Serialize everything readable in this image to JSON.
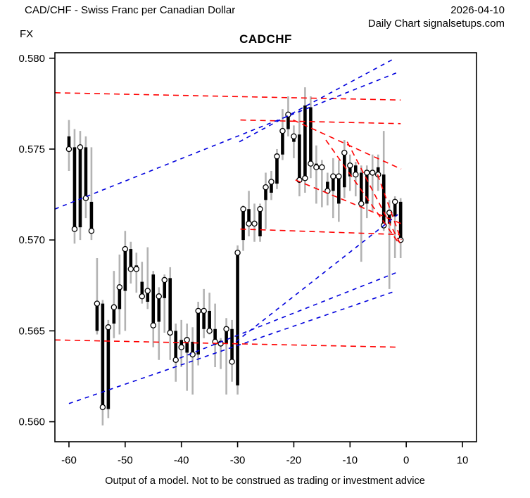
{
  "header": {
    "instrument_title": "CAD/CHF - Swiss Franc per Canadian Dollar",
    "date": "2026-04-10",
    "chart_type_line": "Daily Chart signalsetups.com",
    "market_label": "FX"
  },
  "footer": {
    "disclaimer": "Output of a model. Not to be construed as trading or investment advice"
  },
  "chart_data": {
    "type": "bar",
    "subtype": "ohlc-daily-bars",
    "title": "CADCHF",
    "xlabel": "",
    "ylabel": "",
    "xlim": [
      -62.5,
      12.5
    ],
    "ylim": [
      0.5589,
      0.5803
    ],
    "x_ticks": [
      -60,
      -50,
      -40,
      -30,
      -20,
      -10,
      0,
      10
    ],
    "y_ticks": [
      0.56,
      0.565,
      0.57,
      0.575,
      0.58
    ],
    "grid": false,
    "legend": "none",
    "colors": {
      "wick": "#b3b3b3",
      "body": "#000000",
      "close_marker_fill": "#ffffff",
      "close_marker_stroke": "#000000",
      "resistance_support": "#ff0000",
      "trend_blue": "#0000dd",
      "axis": "#000000",
      "background": "#ffffff"
    },
    "bars_format": [
      "t",
      "open",
      "high",
      "low",
      "close"
    ],
    "bars": [
      [
        -60,
        0.5757,
        0.5766,
        0.5738,
        0.575
      ],
      [
        -59,
        0.5751,
        0.5761,
        0.5698,
        0.5706
      ],
      [
        -58,
        0.5707,
        0.576,
        0.57,
        0.5751
      ],
      [
        -57,
        0.5751,
        0.5757,
        0.5712,
        0.5723
      ],
      [
        -56,
        0.5721,
        0.5751,
        0.57,
        0.5705
      ],
      [
        -55,
        0.565,
        0.569,
        0.5648,
        0.5665
      ],
      [
        -54,
        0.5665,
        0.5667,
        0.5598,
        0.5608
      ],
      [
        -53,
        0.5607,
        0.5656,
        0.5602,
        0.5652
      ],
      [
        -52,
        0.5654,
        0.5683,
        0.5646,
        0.5663
      ],
      [
        -51,
        0.5662,
        0.5692,
        0.5648,
        0.5674
      ],
      [
        -50,
        0.5672,
        0.5705,
        0.565,
        0.5695
      ],
      [
        -49,
        0.5695,
        0.5699,
        0.5676,
        0.5684
      ],
      [
        -48,
        0.5686,
        0.5693,
        0.5671,
        0.5684
      ],
      [
        -47,
        0.5677,
        0.5688,
        0.5665,
        0.5669
      ],
      [
        -46,
        0.5666,
        0.5696,
        0.5662,
        0.5672
      ],
      [
        -45,
        0.5681,
        0.5683,
        0.5641,
        0.5653
      ],
      [
        -44,
        0.5655,
        0.5674,
        0.5634,
        0.5669
      ],
      [
        -43,
        0.5668,
        0.5681,
        0.5649,
        0.5678
      ],
      [
        -42,
        0.5679,
        0.5685,
        0.5634,
        0.5649
      ],
      [
        -41,
        0.565,
        0.5654,
        0.5622,
        0.5634
      ],
      [
        -40,
        0.5645,
        0.5656,
        0.563,
        0.5641
      ],
      [
        -39,
        0.5638,
        0.5654,
        0.5617,
        0.5645
      ],
      [
        -38,
        0.5644,
        0.5652,
        0.5615,
        0.5637
      ],
      [
        -37,
        0.5637,
        0.5666,
        0.5631,
        0.5661
      ],
      [
        -36,
        0.5651,
        0.5673,
        0.5646,
        0.5661
      ],
      [
        -35,
        0.5661,
        0.5671,
        0.5648,
        0.565
      ],
      [
        -34,
        0.5651,
        0.5665,
        0.563,
        0.5644
      ],
      [
        -33,
        0.5643,
        0.5646,
        0.5629,
        0.5643
      ],
      [
        -32,
        0.5643,
        0.5657,
        0.5615,
        0.5651
      ],
      [
        -31,
        0.5651,
        0.5656,
        0.5622,
        0.5633
      ],
      [
        -30,
        0.562,
        0.5697,
        0.5615,
        0.5693
      ],
      [
        -29,
        0.57,
        0.5719,
        0.5694,
        0.5717
      ],
      [
        -28,
        0.5717,
        0.5727,
        0.5702,
        0.5709
      ],
      [
        -27,
        0.5709,
        0.572,
        0.5699,
        0.5709
      ],
      [
        -26,
        0.5702,
        0.572,
        0.5699,
        0.5717
      ],
      [
        -25,
        0.5722,
        0.5737,
        0.5706,
        0.5729
      ],
      [
        -24,
        0.5726,
        0.5738,
        0.5722,
        0.5732
      ],
      [
        -23,
        0.5731,
        0.575,
        0.5728,
        0.5746
      ],
      [
        -22,
        0.5747,
        0.5772,
        0.5744,
        0.576
      ],
      [
        -21,
        0.5761,
        0.5779,
        0.5757,
        0.5769
      ],
      [
        -20,
        0.5754,
        0.5763,
        0.5745,
        0.5757
      ],
      [
        -19,
        0.5758,
        0.5772,
        0.5724,
        0.5733
      ],
      [
        -18,
        0.5774,
        0.5784,
        0.5726,
        0.5734
      ],
      [
        -17,
        0.5773,
        0.5779,
        0.5734,
        0.5742
      ],
      [
        -16,
        0.5742,
        0.5752,
        0.572,
        0.574
      ],
      [
        -15,
        0.574,
        0.5744,
        0.5718,
        0.574
      ],
      [
        -14,
        0.5732,
        0.5737,
        0.5719,
        0.5727
      ],
      [
        -13,
        0.5727,
        0.5745,
        0.5712,
        0.5735
      ],
      [
        -12,
        0.572,
        0.5744,
        0.571,
        0.5735
      ],
      [
        -11,
        0.5729,
        0.5755,
        0.5723,
        0.5748
      ],
      [
        -10,
        0.5735,
        0.5747,
        0.5727,
        0.5741
      ],
      [
        -9,
        0.5741,
        0.5743,
        0.5724,
        0.5736
      ],
      [
        -8,
        0.5737,
        0.5741,
        0.5688,
        0.572
      ],
      [
        -7,
        0.572,
        0.5741,
        0.5712,
        0.5737
      ],
      [
        -6,
        0.5736,
        0.5747,
        0.5716,
        0.5737
      ],
      [
        -5,
        0.574,
        0.5747,
        0.5727,
        0.5736
      ],
      [
        -4,
        0.5736,
        0.576,
        0.5705,
        0.5708
      ],
      [
        -3,
        0.5709,
        0.5722,
        0.5673,
        0.5715
      ],
      [
        -2,
        0.5713,
        0.5724,
        0.569,
        0.5721
      ],
      [
        -1,
        0.5721,
        0.5723,
        0.569,
        0.57
      ]
    ],
    "lines_format": [
      "t1",
      "value1",
      "t2",
      "value2"
    ],
    "red_dashed_lines": [
      [
        -62.5,
        0.5781,
        -1.0,
        0.5777
      ],
      [
        -29.5,
        0.5766,
        -1.0,
        0.5764
      ],
      [
        -29.5,
        0.5706,
        -1.3,
        0.5703
      ],
      [
        -62.5,
        0.5645,
        -1.2,
        0.5641
      ],
      [
        -20.1,
        0.5766,
        -0.9,
        0.5739
      ],
      [
        -19.7,
        0.5733,
        -0.9,
        0.5709
      ],
      [
        -14.3,
        0.5755,
        -1.5,
        0.5699
      ],
      [
        -10.5,
        0.5754,
        -0.9,
        0.5697
      ],
      [
        -5.1,
        0.5736,
        -0.9,
        0.57
      ]
    ],
    "blue_dashed_lines": [
      [
        -60.0,
        0.561,
        -1.8,
        0.5672
      ],
      [
        -40.3,
        0.5635,
        -1.8,
        0.5682
      ],
      [
        -30.3,
        0.5644,
        -1.5,
        0.5714
      ],
      [
        -62.5,
        0.5717,
        -1.7,
        0.5792
      ],
      [
        -29.7,
        0.5754,
        -2.0,
        0.58
      ]
    ]
  }
}
